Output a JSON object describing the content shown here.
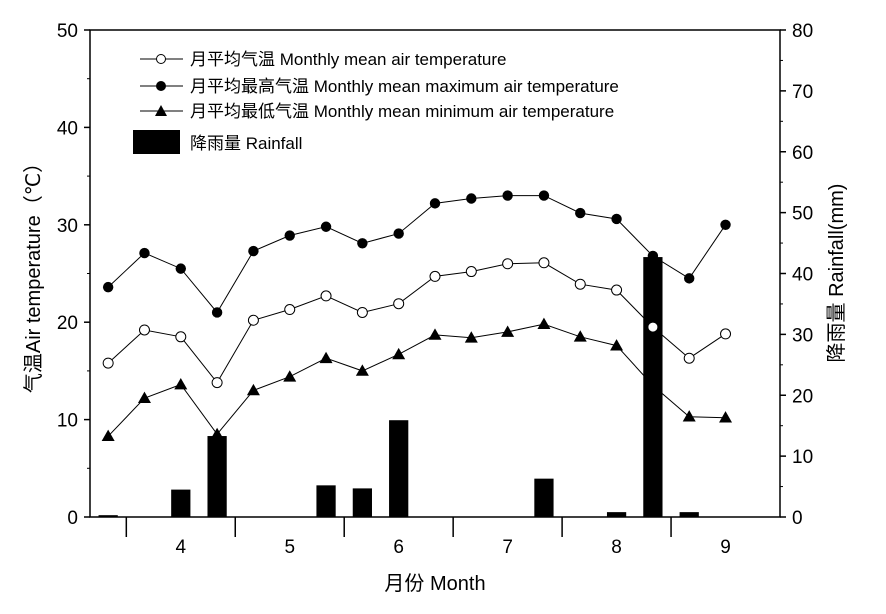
{
  "chart_data": {
    "type": "line+bar",
    "x_axis": {
      "label": "月份 Month",
      "groups": [
        "4",
        "5",
        "6",
        "7",
        "8",
        "9"
      ]
    },
    "y_left": {
      "label": "气温Air temperature（℃）",
      "range": [
        0,
        50
      ],
      "ticks": [
        "0",
        "10",
        "20",
        "30",
        "40",
        "50"
      ]
    },
    "y_right": {
      "label": "降雨量 Rainfall(mm)",
      "range": [
        0,
        80
      ],
      "ticks": [
        "0",
        "10",
        "20",
        "30",
        "40",
        "50",
        "60",
        "70",
        "80"
      ]
    },
    "legend": {
      "position": "top-left",
      "entries": [
        {
          "label": "月平均气温 Monthly mean air temperature",
          "marker": "open-circle"
        },
        {
          "label": "月平均最高气温 Monthly mean maximum air temperature",
          "marker": "filled-circle"
        },
        {
          "label": "月平均最低气温 Monthly mean minimum air temperature",
          "marker": "filled-triangle"
        },
        {
          "label": "降雨量 Rainfall",
          "marker": "bar"
        }
      ]
    },
    "x": [
      0.5,
      1.5,
      2.5,
      3.5,
      4.5,
      5.5,
      6.5,
      7.5,
      8.5,
      9.5,
      10.5,
      11.5,
      12.5,
      13.5,
      14.5,
      15.5,
      16.5,
      17.5
    ],
    "series": [
      {
        "key": "mean",
        "axis": "left",
        "values": [
          15.8,
          19.2,
          18.5,
          13.8,
          20.2,
          21.3,
          22.7,
          21.0,
          21.9,
          24.7,
          25.2,
          26.0,
          26.1,
          23.9,
          23.3,
          19.5,
          16.3,
          18.8
        ]
      },
      {
        "key": "max",
        "axis": "left",
        "values": [
          23.6,
          27.1,
          25.5,
          21.0,
          27.3,
          28.9,
          29.8,
          28.1,
          29.1,
          32.2,
          32.7,
          33.0,
          33.0,
          31.2,
          30.6,
          26.8,
          24.5,
          30.0
        ]
      },
      {
        "key": "min",
        "axis": "left",
        "values": [
          8.3,
          12.2,
          13.6,
          8.5,
          13.0,
          14.4,
          16.3,
          15.0,
          16.7,
          18.7,
          18.4,
          19.0,
          19.8,
          18.5,
          17.6,
          13.5,
          10.3,
          10.2
        ]
      },
      {
        "key": "rainfall",
        "axis": "right",
        "values": [
          0.3,
          0,
          4.5,
          13.3,
          0,
          0,
          5.2,
          4.7,
          15.9,
          0,
          0,
          0,
          6.3,
          0,
          0.8,
          42.7,
          0.8,
          0
        ]
      }
    ]
  }
}
